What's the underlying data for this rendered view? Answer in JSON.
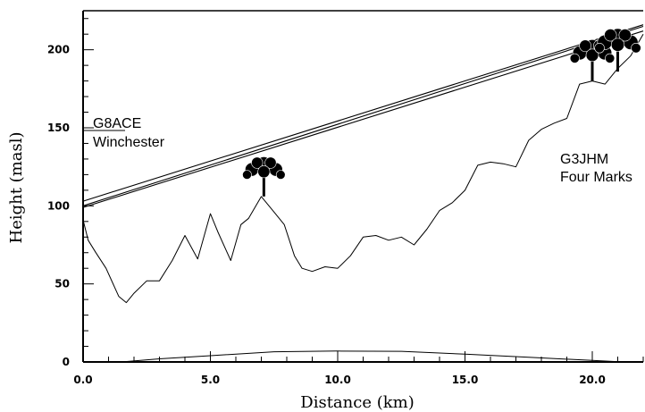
{
  "chart_data": {
    "type": "line",
    "title": "",
    "xlabel": "Distance (km)",
    "ylabel": "Height (masl)",
    "xlim": [
      0,
      22
    ],
    "ylim": [
      0,
      225
    ],
    "grid": false,
    "x_ticks": [
      0,
      5,
      10,
      15,
      20
    ],
    "x_tick_labels": [
      "0.0",
      "5.0",
      "10.0",
      "15.0",
      "20.0"
    ],
    "y_ticks": [
      0,
      50,
      100,
      150,
      200
    ],
    "y_tick_labels": [
      "0",
      "50",
      "100",
      "150",
      "200"
    ],
    "series": [
      {
        "name": "",
        "role": "terrain-profile",
        "x": [
          0,
          0.2,
          0.5,
          0.9,
          1.4,
          1.7,
          2.0,
          2.5,
          3.0,
          3.5,
          4.0,
          4.5,
          5.0,
          5.3,
          5.8,
          6.2,
          6.5,
          7.0,
          7.5,
          7.9,
          8.3,
          8.6,
          9.0,
          9.5,
          10.0,
          10.5,
          11.0,
          11.5,
          12.0,
          12.5,
          13.0,
          13.5,
          14.0,
          14.5,
          15.0,
          15.5,
          16.0,
          16.5,
          17.0,
          17.5,
          18.0,
          18.5,
          19.0,
          19.5,
          20.0,
          20.5,
          21.0,
          21.5,
          22.0
        ],
        "y": [
          91,
          78,
          70,
          60,
          42,
          38,
          44,
          52,
          52,
          65,
          81,
          66,
          95,
          83,
          65,
          88,
          92,
          106,
          96,
          88,
          68,
          60,
          58,
          61,
          60,
          68,
          80,
          81,
          78,
          80,
          75,
          85,
          97,
          102,
          110,
          126,
          128,
          127,
          125,
          142,
          149,
          153,
          156,
          178,
          180,
          178,
          188,
          196,
          210
        ]
      },
      {
        "name": "",
        "role": "line-of-sight",
        "x": [
          0,
          22
        ],
        "y": [
          100,
          215
        ]
      },
      {
        "name": "",
        "role": "fresnel-upper",
        "x": [
          0,
          22
        ],
        "y": [
          103,
          216
        ]
      },
      {
        "name": "",
        "role": "fresnel-lower",
        "x": [
          0,
          22
        ],
        "y": [
          99,
          212
        ]
      },
      {
        "name": "",
        "role": "earth-bulge",
        "x": [
          1.5,
          3.0,
          5.0,
          7.5,
          10.0,
          12.5,
          15.0,
          17.5,
          20.0,
          21.2
        ],
        "y": [
          0,
          2,
          4,
          6.5,
          7,
          6.8,
          5,
          3,
          1,
          0
        ]
      }
    ],
    "trees": [
      {
        "x": 7.1,
        "base_height": 106,
        "top_height": 130
      },
      {
        "x": 20.0,
        "base_height": 180,
        "top_height": 205
      },
      {
        "x": 21.0,
        "base_height": 186,
        "top_height": 212
      }
    ],
    "annotations": [
      {
        "id": "station-a-callsign",
        "text": "G8ACE"
      },
      {
        "id": "station-a-location",
        "text": "Winchester"
      },
      {
        "id": "station-b-callsign",
        "text": "G3JHM"
      },
      {
        "id": "station-b-location",
        "text": "Four Marks"
      }
    ]
  }
}
